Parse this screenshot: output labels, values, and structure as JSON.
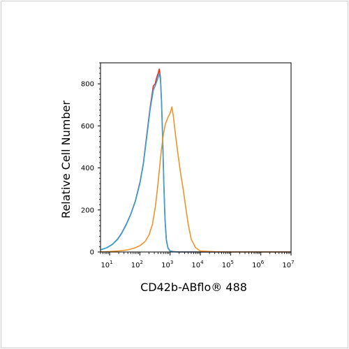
{
  "chart_data": {
    "type": "line",
    "xscale": "log",
    "xlim": [
      5,
      10000000
    ],
    "ylim": [
      0,
      900
    ],
    "xlabel": "CD42b-ABflo® 488",
    "ylabel": "Relative Cell Number",
    "xticks": [
      {
        "value": 10,
        "base": "10",
        "exp": "1"
      },
      {
        "value": 100,
        "base": "10",
        "exp": "2"
      },
      {
        "value": 1000,
        "base": "10",
        "exp": "3"
      },
      {
        "value": 10000,
        "base": "10",
        "exp": "4"
      },
      {
        "value": 100000,
        "base": "10",
        "exp": "5"
      },
      {
        "value": 1000000,
        "base": "10",
        "exp": "6"
      },
      {
        "value": 10000000,
        "base": "10",
        "exp": "7"
      }
    ],
    "yticks": [
      0,
      200,
      400,
      600,
      800
    ],
    "grid": false,
    "series": [
      {
        "color": "#ff2020",
        "x": [
          5,
          8,
          12,
          18,
          25,
          35,
          50,
          70,
          100,
          130,
          170,
          220,
          280,
          320,
          360,
          400,
          440,
          480,
          520,
          570,
          620,
          680,
          750,
          850,
          1000,
          1300,
          2000,
          5000,
          100000,
          10000000
        ],
        "y": [
          10,
          20,
          35,
          60,
          90,
          130,
          180,
          240,
          330,
          420,
          560,
          690,
          790,
          800,
          830,
          850,
          870,
          830,
          720,
          540,
          330,
          160,
          60,
          20,
          5,
          2,
          0,
          0,
          0,
          0
        ]
      },
      {
        "color": "#2aa8d8",
        "x": [
          5,
          8,
          12,
          18,
          25,
          35,
          50,
          70,
          100,
          130,
          170,
          220,
          280,
          320,
          360,
          400,
          440,
          480,
          520,
          570,
          620,
          680,
          750,
          850,
          1000,
          1300,
          2000,
          5000,
          100000,
          10000000
        ],
        "y": [
          10,
          20,
          35,
          58,
          88,
          128,
          178,
          238,
          325,
          415,
          550,
          680,
          770,
          790,
          810,
          830,
          850,
          820,
          710,
          530,
          320,
          150,
          55,
          18,
          4,
          1,
          0,
          0,
          0,
          0
        ]
      },
      {
        "color": "#f0922a",
        "x": [
          5,
          10,
          20,
          40,
          70,
          100,
          150,
          200,
          260,
          330,
          400,
          500,
          600,
          700,
          850,
          1000,
          1150,
          1300,
          1500,
          1800,
          2200,
          2700,
          3300,
          4000,
          5000,
          7000,
          10000,
          30000,
          100000,
          10000000
        ],
        "y": [
          0,
          2,
          5,
          10,
          20,
          30,
          50,
          80,
          130,
          220,
          330,
          470,
          560,
          610,
          640,
          660,
          690,
          640,
          560,
          470,
          380,
          300,
          210,
          130,
          60,
          20,
          5,
          1,
          0,
          0
        ]
      }
    ]
  }
}
